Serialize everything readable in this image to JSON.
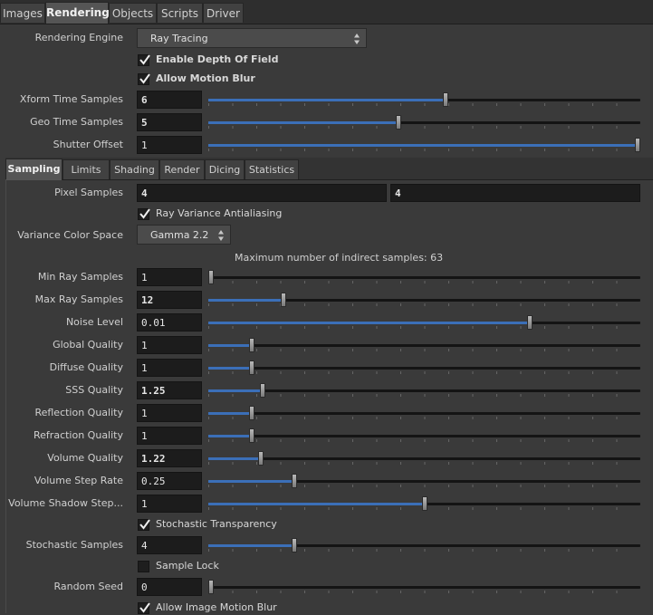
{
  "top_tabs": [
    "Images",
    "Rendering",
    "Objects",
    "Scripts",
    "Driver"
  ],
  "rendering": {
    "engine_label": "Rendering Engine",
    "engine_value": "Ray Tracing",
    "depth_of_field": "Enable Depth Of Field",
    "motion_blur": "Allow Motion Blur",
    "xform_label": "Xform Time Samples",
    "xform_value": "6",
    "xform_level": 0.55,
    "geo_label": "Geo Time Samples",
    "geo_value": "5",
    "geo_level": 0.44,
    "shutter_label": "Shutter Offset",
    "shutter_value": "1",
    "shutter_level": 1.0
  },
  "sub_tabs": [
    "Sampling",
    "Limits",
    "Shading",
    "Render",
    "Dicing",
    "Statistics"
  ],
  "sampling": {
    "pixel_samples_label": "Pixel Samples",
    "pixel_x": "4",
    "pixel_y": "4",
    "ray_variance": "Ray Variance Antialiasing",
    "color_space_label": "Variance Color Space",
    "color_space_value": "Gamma 2.2",
    "info": "Maximum number of indirect samples: 63",
    "rows": [
      {
        "label": "Min Ray Samples",
        "value": "1",
        "level": 0.0
      },
      {
        "label": "Max Ray Samples",
        "value": "12",
        "level": 0.175
      },
      {
        "label": "Noise Level",
        "value": "0.01",
        "level": 0.745
      },
      {
        "label": "Global Quality",
        "value": "1",
        "level": 0.1
      },
      {
        "label": "Diffuse Quality",
        "value": "1",
        "level": 0.1
      },
      {
        "label": "SSS Quality",
        "value": "1.25",
        "level": 0.125
      },
      {
        "label": "Reflection Quality",
        "value": "1",
        "level": 0.1
      },
      {
        "label": "Refraction Quality",
        "value": "1",
        "level": 0.1
      },
      {
        "label": "Volume Quality",
        "value": "1.22",
        "level": 0.122
      },
      {
        "label": "Volume Step Rate",
        "value": "0.25",
        "level": 0.2
      },
      {
        "label": "Volume Shadow Step...",
        "value": "1",
        "level": 0.5
      }
    ],
    "stochastic_transparency": "Stochastic Transparency",
    "stochastic_samples_label": "Stochastic Samples",
    "stochastic_samples_value": "4",
    "stochastic_level": 0.2,
    "sample_lock": "Sample Lock",
    "random_seed_label": "Random Seed",
    "random_seed_value": "0",
    "random_seed_level": 0.0,
    "image_motion_blur": "Allow Image Motion Blur"
  }
}
